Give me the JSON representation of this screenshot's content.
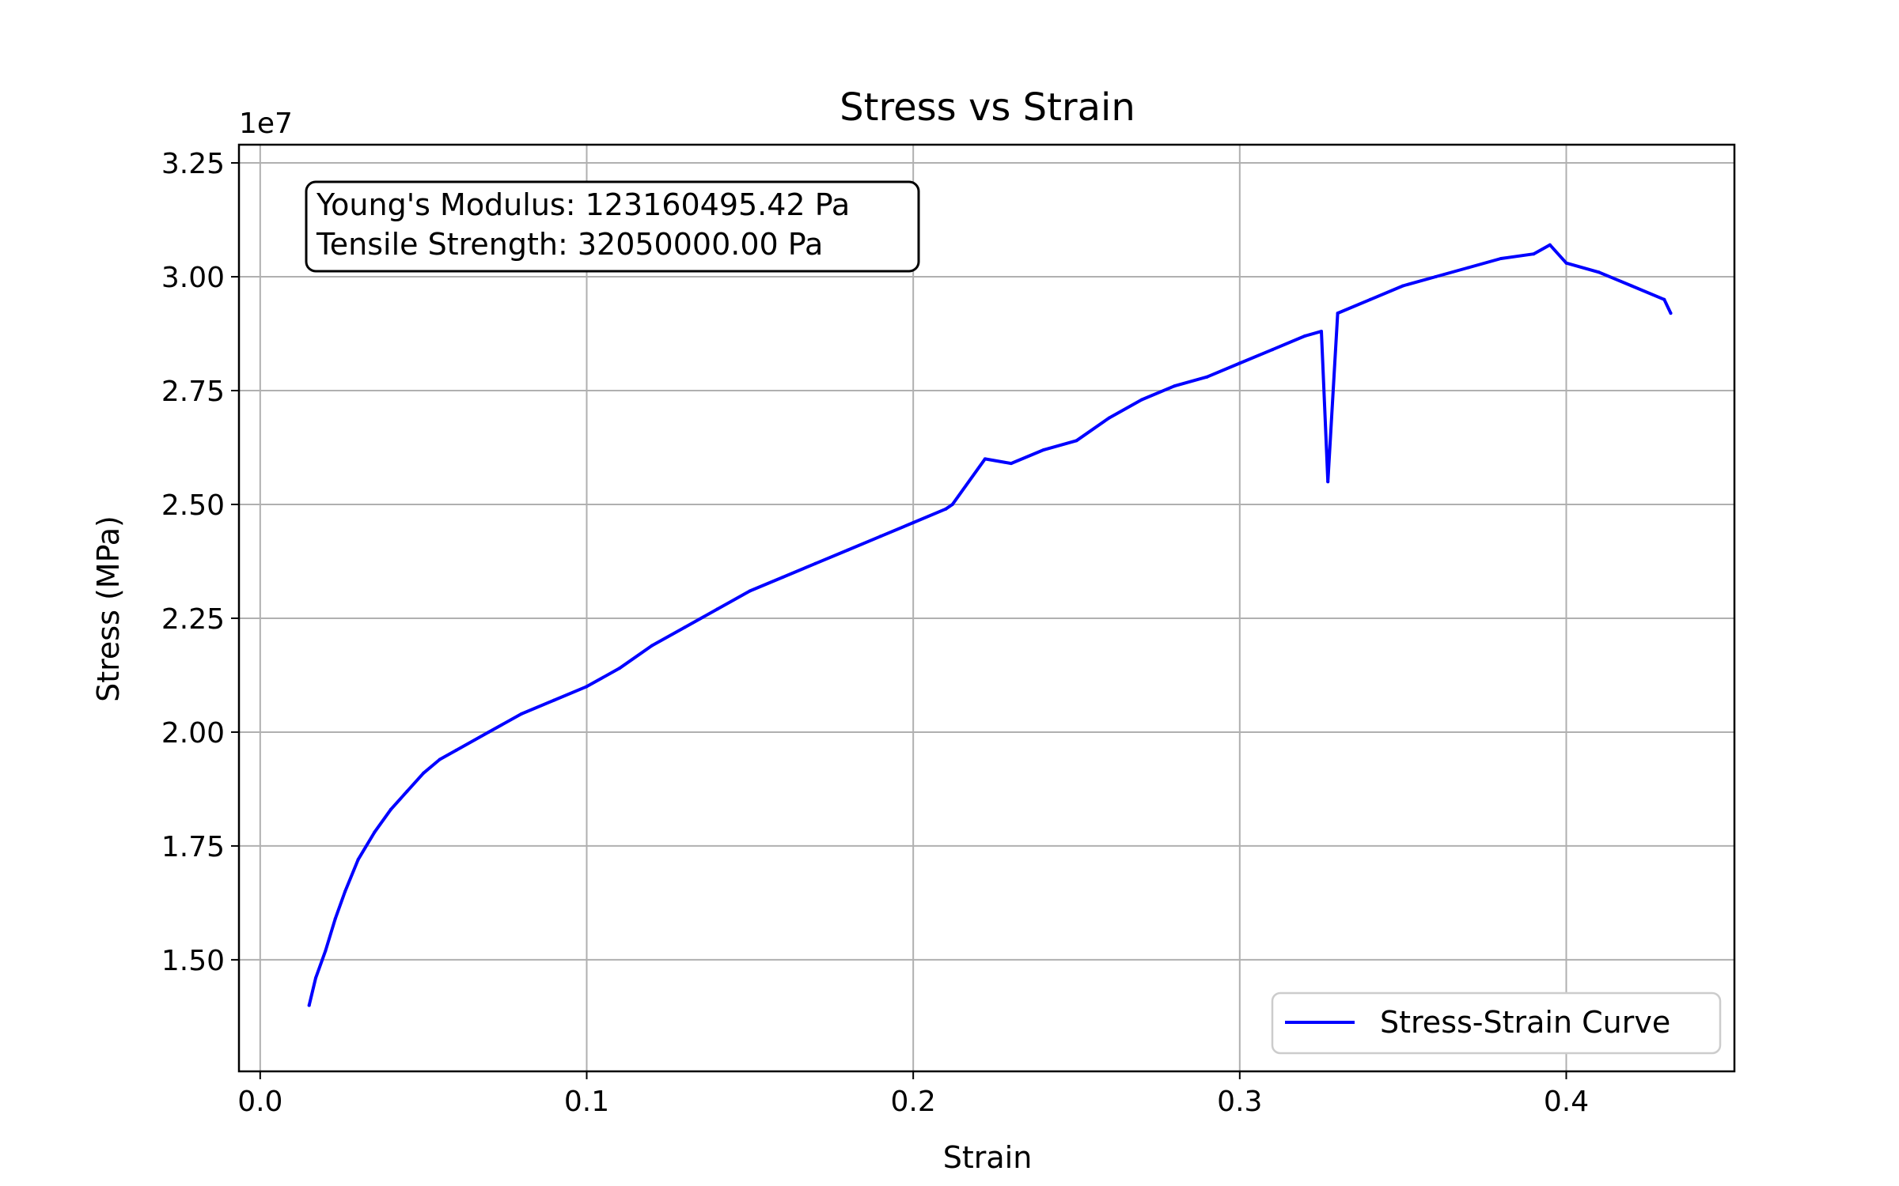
{
  "chart_data": {
    "type": "line",
    "title": "Stress vs Strain",
    "xlabel": "Strain",
    "ylabel": "Stress (MPa)",
    "y_offset_label": "1e7",
    "xlim": [
      -0.0065,
      0.4515
    ],
    "ylim": [
      12550000,
      32900000
    ],
    "x_ticks": [
      0.0,
      0.1,
      0.2,
      0.3,
      0.4
    ],
    "x_tick_labels": [
      "0.0",
      "0.1",
      "0.2",
      "0.3",
      "0.4"
    ],
    "y_ticks": [
      15000000,
      17500000,
      20000000,
      22500000,
      25000000,
      27500000,
      30000000,
      32500000
    ],
    "y_tick_labels": [
      "1.50",
      "1.75",
      "2.00",
      "2.25",
      "2.50",
      "2.75",
      "3.00",
      "3.25"
    ],
    "grid": true,
    "legend_position": "lower right",
    "annotation_lines": [
      "Young's Modulus: 123160495.42 Pa",
      "Tensile Strength: 32050000.00 Pa"
    ],
    "series": [
      {
        "name": "Stress-Strain Curve",
        "color": "#0000ff",
        "x": [
          0.015,
          0.017,
          0.02,
          0.023,
          0.026,
          0.03,
          0.035,
          0.04,
          0.045,
          0.05,
          0.055,
          0.06,
          0.07,
          0.08,
          0.09,
          0.1,
          0.11,
          0.12,
          0.13,
          0.14,
          0.15,
          0.16,
          0.17,
          0.18,
          0.19,
          0.2,
          0.21,
          0.212,
          0.222,
          0.23,
          0.24,
          0.25,
          0.26,
          0.27,
          0.28,
          0.29,
          0.3,
          0.31,
          0.32,
          0.325,
          0.327,
          0.33,
          0.34,
          0.35,
          0.36,
          0.37,
          0.38,
          0.39,
          0.395,
          0.4,
          0.41,
          0.42,
          0.43,
          0.432
        ],
        "y": [
          14000000,
          14600000,
          15200000,
          15900000,
          16500000,
          17200000,
          17800000,
          18300000,
          18700000,
          19100000,
          19400000,
          19600000,
          20000000,
          20400000,
          20700000,
          21000000,
          21400000,
          21900000,
          22300000,
          22700000,
          23100000,
          23400000,
          23700000,
          24000000,
          24300000,
          24600000,
          24900000,
          25000000,
          26000000,
          25900000,
          26200000,
          26400000,
          26900000,
          27300000,
          27600000,
          27800000,
          28100000,
          28400000,
          28700000,
          28800000,
          25500000,
          29200000,
          29500000,
          29800000,
          30000000,
          30200000,
          30400000,
          30500000,
          30700000,
          30300000,
          30100000,
          29800000,
          29500000,
          29200000
        ]
      }
    ]
  }
}
